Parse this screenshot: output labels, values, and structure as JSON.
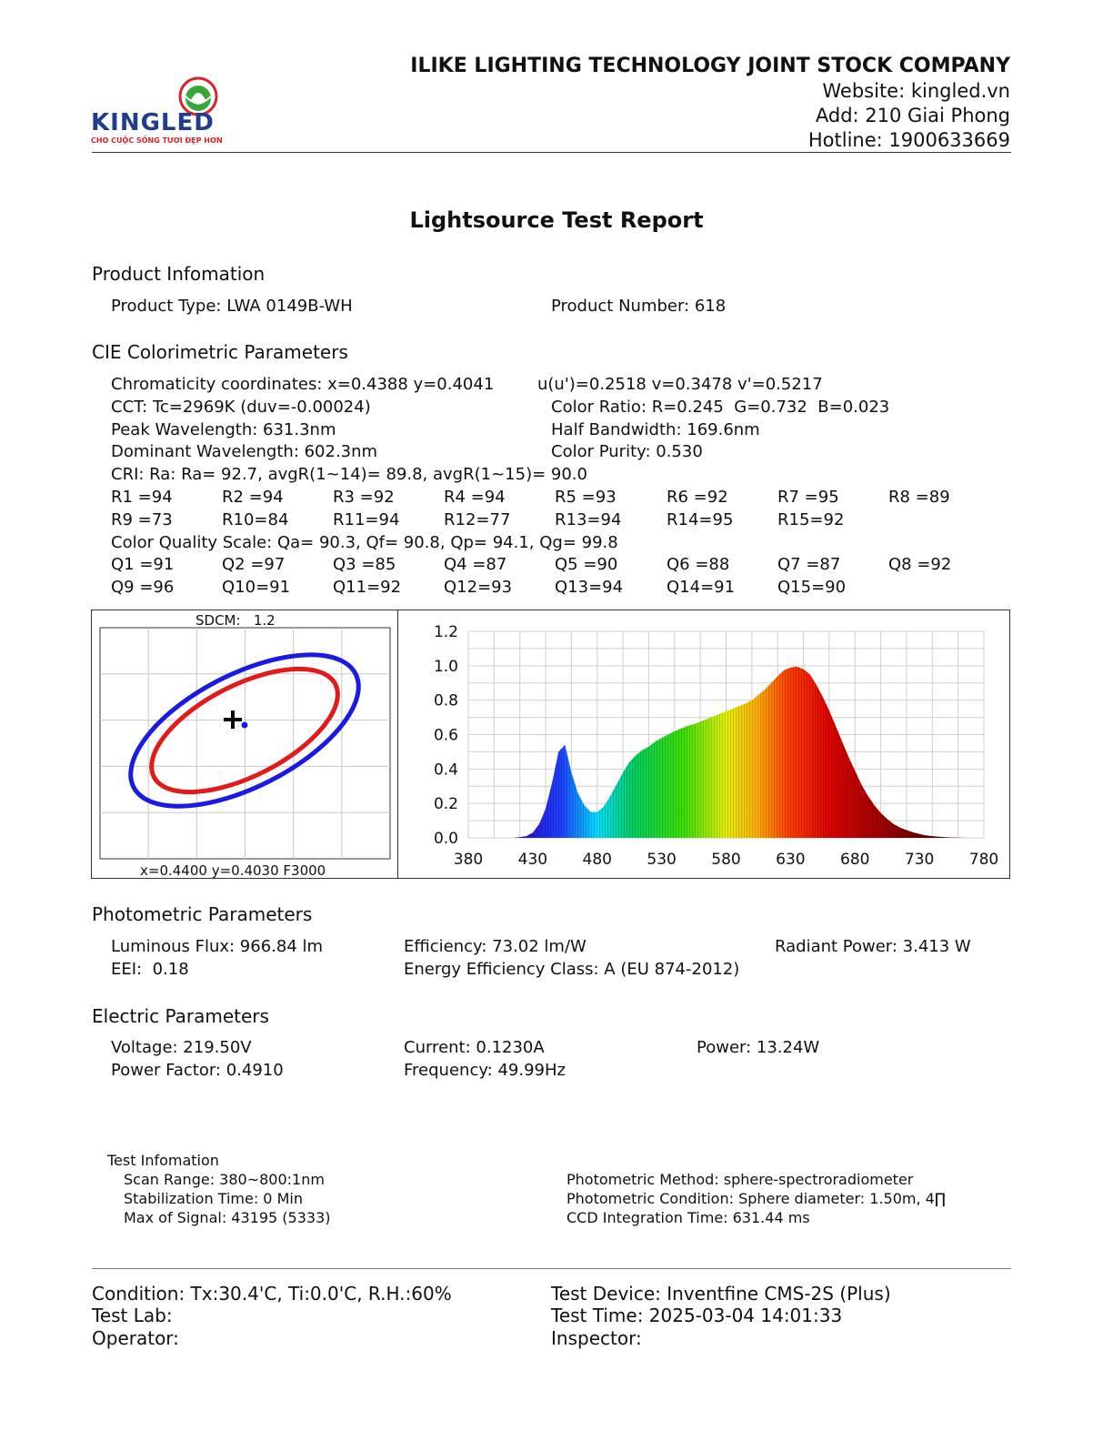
{
  "header": {
    "company": "ILIKE LIGHTING TECHNOLOGY JOINT STOCK COMPANY",
    "website": "Website: kingled.vn",
    "address": "Add: 210 Giai Phong",
    "hotline": "Hotline: 1900633669",
    "logo_text": "KINGLED",
    "logo_tagline": "CHO CUỘC SỐNG TƯƠI ĐẸP HƠN"
  },
  "title": "Lightsource Test Report",
  "product": {
    "heading": "Product Infomation",
    "type": "Product Type: LWA 0149B-WH",
    "number": "Product Number: 618"
  },
  "cie": {
    "heading": "CIE Colorimetric Parameters",
    "chromaticity": "Chromaticity coordinates: x=0.4388 y=0.4041",
    "uv": "u(u')=0.2518 v=0.3478 v'=0.5217",
    "cct": "CCT: Tc=2969K (duv=-0.00024)",
    "color_ratio": "Color Ratio: R=0.245  G=0.732  B=0.023",
    "peak": "Peak Wavelength: 631.3nm",
    "half_bandwidth": "Half Bandwidth: 169.6nm",
    "dominant": "Dominant Wavelength: 602.3nm",
    "purity": "Color Purity: 0.530",
    "cri": "CRI: Ra: Ra= 92.7, avgR(1~14)= 89.8, avgR(1~15)= 90.0",
    "r_values": [
      "R1 =94",
      "R2 =94",
      "R3 =92",
      "R4 =94",
      "R5 =93",
      "R6 =92",
      "R7 =95",
      "R8 =89",
      "R9 =73",
      "R10=84",
      "R11=94",
      "R12=77",
      "R13=94",
      "R14=95",
      "R15=92"
    ],
    "cqs": "Color Quality Scale: Qa= 90.3, Qf= 90.8, Qp= 94.1, Qg= 99.8",
    "q_values": [
      "Q1 =91",
      "Q2 =97",
      "Q3 =85",
      "Q4 =87",
      "Q5 =90",
      "Q6 =88",
      "Q7 =87",
      "Q8 =92",
      "Q9 =96",
      "Q10=91",
      "Q11=92",
      "Q12=93",
      "Q13=94",
      "Q14=91",
      "Q15=90"
    ]
  },
  "sdcm": {
    "label": "SDCM:   1.2",
    "footer": "x=0.4400 y=0.4030 F3000",
    "inner_color": "#e31a1a",
    "outer_color": "#1a1ae3"
  },
  "chart_data": {
    "type": "area",
    "xlabel": "",
    "ylabel": "",
    "xlim": [
      380,
      780
    ],
    "ylim": [
      0,
      1.2
    ],
    "x_ticks": [
      "380",
      "430",
      "480",
      "530",
      "580",
      "630",
      "680",
      "730",
      "780"
    ],
    "y_ticks": [
      "0.0",
      "0.2",
      "0.4",
      "0.6",
      "0.8",
      "1.0",
      "1.2"
    ],
    "grid": true,
    "x": [
      415,
      420,
      425,
      430,
      435,
      440,
      445,
      450,
      455,
      460,
      465,
      470,
      475,
      480,
      485,
      490,
      495,
      500,
      505,
      510,
      515,
      520,
      525,
      530,
      535,
      540,
      545,
      550,
      555,
      560,
      565,
      570,
      575,
      580,
      585,
      590,
      595,
      600,
      605,
      610,
      615,
      620,
      625,
      630,
      635,
      640,
      645,
      650,
      655,
      660,
      665,
      670,
      675,
      680,
      685,
      690,
      695,
      700,
      705,
      710,
      715,
      720,
      725,
      730,
      735,
      740,
      745,
      750,
      755,
      760,
      765,
      770,
      775
    ],
    "y": [
      0.0,
      0.005,
      0.01,
      0.03,
      0.08,
      0.17,
      0.32,
      0.5,
      0.54,
      0.38,
      0.26,
      0.19,
      0.15,
      0.15,
      0.18,
      0.24,
      0.31,
      0.38,
      0.44,
      0.48,
      0.51,
      0.53,
      0.56,
      0.58,
      0.6,
      0.62,
      0.635,
      0.65,
      0.66,
      0.675,
      0.69,
      0.705,
      0.72,
      0.735,
      0.75,
      0.765,
      0.78,
      0.8,
      0.83,
      0.86,
      0.9,
      0.94,
      0.975,
      0.99,
      0.995,
      0.98,
      0.95,
      0.89,
      0.82,
      0.74,
      0.65,
      0.56,
      0.47,
      0.39,
      0.31,
      0.245,
      0.19,
      0.145,
      0.11,
      0.08,
      0.06,
      0.045,
      0.032,
      0.022,
      0.015,
      0.01,
      0.007,
      0.004,
      0.002,
      0.001,
      0.0,
      0.0,
      0.0
    ]
  },
  "photometric": {
    "heading": "Photometric Parameters",
    "flux": "Luminous Flux: 966.84 lm",
    "efficiency": "Efficiency: 73.02 lm/W",
    "radiant": "Radiant Power: 3.413 W",
    "eei": "EEI:  0.18",
    "energy_class": "Energy Efficiency Class: A (EU 874-2012)"
  },
  "electric": {
    "heading": "Electric Parameters",
    "voltage": "Voltage: 219.50V",
    "current": "Current: 0.1230A",
    "power": "Power: 13.24W",
    "pf": "Power Factor: 0.4910",
    "frequency": "Frequency: 49.99Hz"
  },
  "test_info": {
    "heading": "Test Infomation",
    "scan_range": "Scan Range: 380~800:1nm",
    "stabilization": "Stabilization Time: 0 Min",
    "max_signal": "Max of Signal: 43195 (5333)",
    "method": "Photometric Method: sphere-spectroradiometer",
    "condition": "Photometric Condition: Sphere diameter: 1.50m, 4∏",
    "ccd": "CCD Integration Time: 631.44 ms"
  },
  "footer": {
    "condition": "Condition: Tx:30.4'C, Ti:0.0'C, R.H.:60%",
    "device": "Test Device: Inventfine CMS-2S (Plus)",
    "lab": "Test Lab:",
    "time": "Test Time: 2025-03-04 14:01:33",
    "operator": "Operator:",
    "inspector": "Inspector:"
  }
}
